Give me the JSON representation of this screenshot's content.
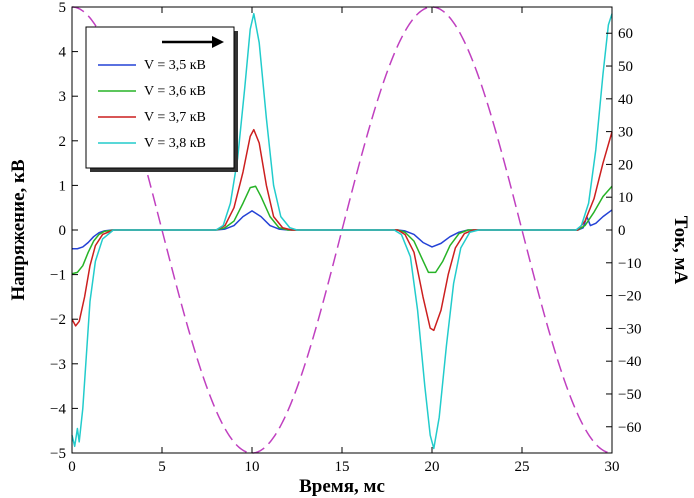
{
  "chart_data": {
    "type": "line",
    "title": "",
    "xlabel": "Время, мс",
    "ylabel": "Напряжение, кВ",
    "y2label": "Ток, мА",
    "xlim": [
      0,
      30
    ],
    "ylim": [
      -5,
      5
    ],
    "y2lim": [
      -68,
      68
    ],
    "xticks": [
      0,
      5,
      10,
      15,
      20,
      25,
      30
    ],
    "yticks": [
      -5,
      -4,
      -3,
      -2,
      -1,
      0,
      1,
      2,
      3,
      4,
      5
    ],
    "y2ticks": [
      -60,
      -50,
      -40,
      -30,
      -20,
      -10,
      0,
      10,
      20,
      30,
      40,
      50,
      60
    ],
    "grid": false,
    "legend_position": "top-left",
    "series": [
      {
        "name": "V = 3,5 кВ",
        "color": "#2442d6",
        "axis": "left",
        "points": [
          [
            0,
            -0.42
          ],
          [
            0.3,
            -0.42
          ],
          [
            0.6,
            -0.38
          ],
          [
            0.9,
            -0.28
          ],
          [
            1.2,
            -0.15
          ],
          [
            1.5,
            -0.06
          ],
          [
            1.8,
            -0.02
          ],
          [
            2.2,
            0
          ],
          [
            8,
            0
          ],
          [
            8.5,
            0.02
          ],
          [
            9,
            0.1
          ],
          [
            9.5,
            0.3
          ],
          [
            10,
            0.43
          ],
          [
            10.5,
            0.3
          ],
          [
            11,
            0.1
          ],
          [
            11.5,
            0.02
          ],
          [
            12,
            0
          ],
          [
            18.1,
            0
          ],
          [
            18.5,
            -0.02
          ],
          [
            19,
            -0.1
          ],
          [
            19.5,
            -0.28
          ],
          [
            20,
            -0.38
          ],
          [
            20.5,
            -0.3
          ],
          [
            21,
            -0.15
          ],
          [
            21.5,
            -0.05
          ],
          [
            22,
            0
          ],
          [
            28.1,
            0
          ],
          [
            28.4,
            0.05
          ],
          [
            28.6,
            0.3
          ],
          [
            28.8,
            0.1
          ],
          [
            29.1,
            0.15
          ],
          [
            29.5,
            0.3
          ],
          [
            30,
            0.45
          ]
        ]
      },
      {
        "name": "V = 3,6 кВ",
        "color": "#27b327",
        "axis": "left",
        "points": [
          [
            0,
            -0.98
          ],
          [
            0.3,
            -0.95
          ],
          [
            0.6,
            -0.8
          ],
          [
            0.9,
            -0.5
          ],
          [
            1.2,
            -0.25
          ],
          [
            1.5,
            -0.1
          ],
          [
            1.8,
            -0.03
          ],
          [
            2.3,
            0
          ],
          [
            8,
            0
          ],
          [
            8.5,
            0.05
          ],
          [
            9,
            0.2
          ],
          [
            9.5,
            0.6
          ],
          [
            9.9,
            0.95
          ],
          [
            10.2,
            0.98
          ],
          [
            10.5,
            0.75
          ],
          [
            11,
            0.3
          ],
          [
            11.5,
            0.05
          ],
          [
            12,
            0
          ],
          [
            18.1,
            0
          ],
          [
            18.5,
            -0.05
          ],
          [
            19,
            -0.25
          ],
          [
            19.4,
            -0.6
          ],
          [
            19.8,
            -0.95
          ],
          [
            20.2,
            -0.95
          ],
          [
            20.6,
            -0.7
          ],
          [
            21,
            -0.35
          ],
          [
            21.5,
            -0.08
          ],
          [
            22,
            0
          ],
          [
            28.1,
            0
          ],
          [
            28.5,
            0.1
          ],
          [
            29,
            0.4
          ],
          [
            29.5,
            0.75
          ],
          [
            30,
            0.98
          ]
        ]
      },
      {
        "name": "V = 3,7 кВ",
        "color": "#cc1f1f",
        "axis": "left",
        "points": [
          [
            0,
            -2.0
          ],
          [
            0.2,
            -2.15
          ],
          [
            0.4,
            -2.05
          ],
          [
            0.7,
            -1.5
          ],
          [
            1,
            -0.8
          ],
          [
            1.3,
            -0.35
          ],
          [
            1.7,
            -0.1
          ],
          [
            2.3,
            0
          ],
          [
            8,
            0
          ],
          [
            8.5,
            0.1
          ],
          [
            9,
            0.5
          ],
          [
            9.5,
            1.3
          ],
          [
            9.9,
            2.1
          ],
          [
            10.1,
            2.25
          ],
          [
            10.4,
            1.95
          ],
          [
            10.8,
            1.0
          ],
          [
            11.2,
            0.3
          ],
          [
            11.7,
            0.05
          ],
          [
            12.2,
            0
          ],
          [
            18.1,
            0
          ],
          [
            18.5,
            -0.1
          ],
          [
            19,
            -0.5
          ],
          [
            19.5,
            -1.5
          ],
          [
            19.9,
            -2.2
          ],
          [
            20.1,
            -2.25
          ],
          [
            20.5,
            -1.8
          ],
          [
            20.9,
            -1.0
          ],
          [
            21.3,
            -0.4
          ],
          [
            21.8,
            -0.08
          ],
          [
            22.3,
            0
          ],
          [
            28.1,
            0
          ],
          [
            28.5,
            0.2
          ],
          [
            29,
            0.7
          ],
          [
            29.5,
            1.5
          ],
          [
            30,
            2.2
          ]
        ]
      },
      {
        "name": "V = 3,8 кВ",
        "color": "#22cccc",
        "axis": "left",
        "points": [
          [
            0,
            -4.6
          ],
          [
            0.15,
            -4.85
          ],
          [
            0.3,
            -4.45
          ],
          [
            0.4,
            -4.75
          ],
          [
            0.6,
            -4.0
          ],
          [
            0.8,
            -2.8
          ],
          [
            1,
            -1.6
          ],
          [
            1.3,
            -0.7
          ],
          [
            1.7,
            -0.2
          ],
          [
            2.3,
            0
          ],
          [
            8,
            0
          ],
          [
            8.4,
            0.1
          ],
          [
            8.8,
            0.6
          ],
          [
            9.2,
            1.6
          ],
          [
            9.6,
            3.2
          ],
          [
            9.9,
            4.5
          ],
          [
            10.1,
            4.85
          ],
          [
            10.4,
            4.2
          ],
          [
            10.8,
            2.5
          ],
          [
            11.2,
            1.0
          ],
          [
            11.6,
            0.3
          ],
          [
            12.1,
            0.05
          ],
          [
            12.5,
            0
          ],
          [
            17.9,
            0
          ],
          [
            18.3,
            -0.1
          ],
          [
            18.8,
            -0.6
          ],
          [
            19.2,
            -1.8
          ],
          [
            19.6,
            -3.5
          ],
          [
            19.9,
            -4.6
          ],
          [
            20.1,
            -4.9
          ],
          [
            20.4,
            -4.2
          ],
          [
            20.8,
            -2.6
          ],
          [
            21.2,
            -1.2
          ],
          [
            21.6,
            -0.4
          ],
          [
            22.1,
            -0.05
          ],
          [
            22.6,
            0
          ],
          [
            28,
            0
          ],
          [
            28.3,
            0.1
          ],
          [
            28.7,
            0.6
          ],
          [
            29.1,
            1.8
          ],
          [
            29.5,
            3.5
          ],
          [
            29.8,
            4.6
          ],
          [
            30,
            4.85
          ]
        ]
      },
      {
        "name": "",
        "color": "#c040c0",
        "axis": "right",
        "style": "dashed",
        "function": "sine",
        "amplitude_mA": 68,
        "period_ms": 20,
        "phase_zero_crossing_ms": 5
      }
    ],
    "arrow": {
      "direction": "right"
    }
  }
}
